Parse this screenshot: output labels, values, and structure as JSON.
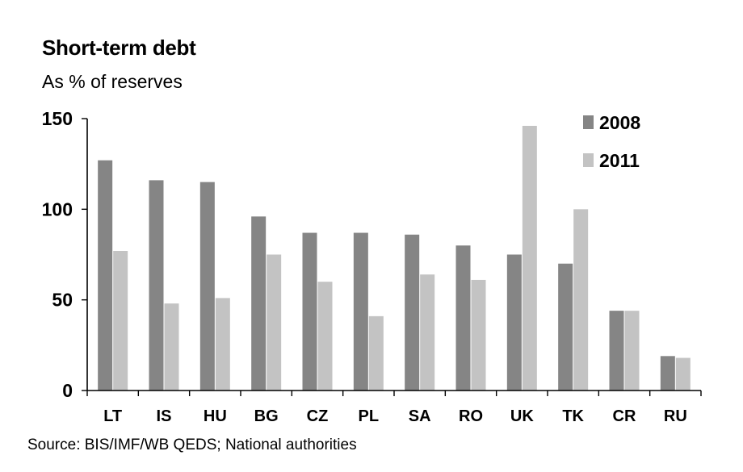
{
  "header": {
    "title": "Short-term debt",
    "subtitle": "As % of reserves"
  },
  "footer": {
    "source": "Source: BIS/IMF/WB QEDS; National authorities"
  },
  "colors": {
    "series_2008": "#858585",
    "series_2011": "#c3c3c3",
    "axis": "#000000"
  },
  "chart_data": {
    "type": "bar",
    "title": "Short-term debt",
    "subtitle": "As % of reserves",
    "xlabel": "",
    "ylabel": "",
    "ylim": [
      0,
      150
    ],
    "yticks": [
      0,
      50,
      100,
      150
    ],
    "grid": false,
    "legend_position": "top-right",
    "categories": [
      "LT",
      "IS",
      "HU",
      "BG",
      "CZ",
      "PL",
      "SA",
      "RO",
      "UK",
      "TK",
      "CR",
      "RU"
    ],
    "series": [
      {
        "name": "2008",
        "values": [
          127,
          116,
          115,
          96,
          87,
          87,
          86,
          80,
          75,
          70,
          44,
          19
        ]
      },
      {
        "name": "2011",
        "values": [
          77,
          48,
          51,
          75,
          60,
          41,
          64,
          61,
          146,
          100,
          44,
          18
        ]
      }
    ]
  }
}
